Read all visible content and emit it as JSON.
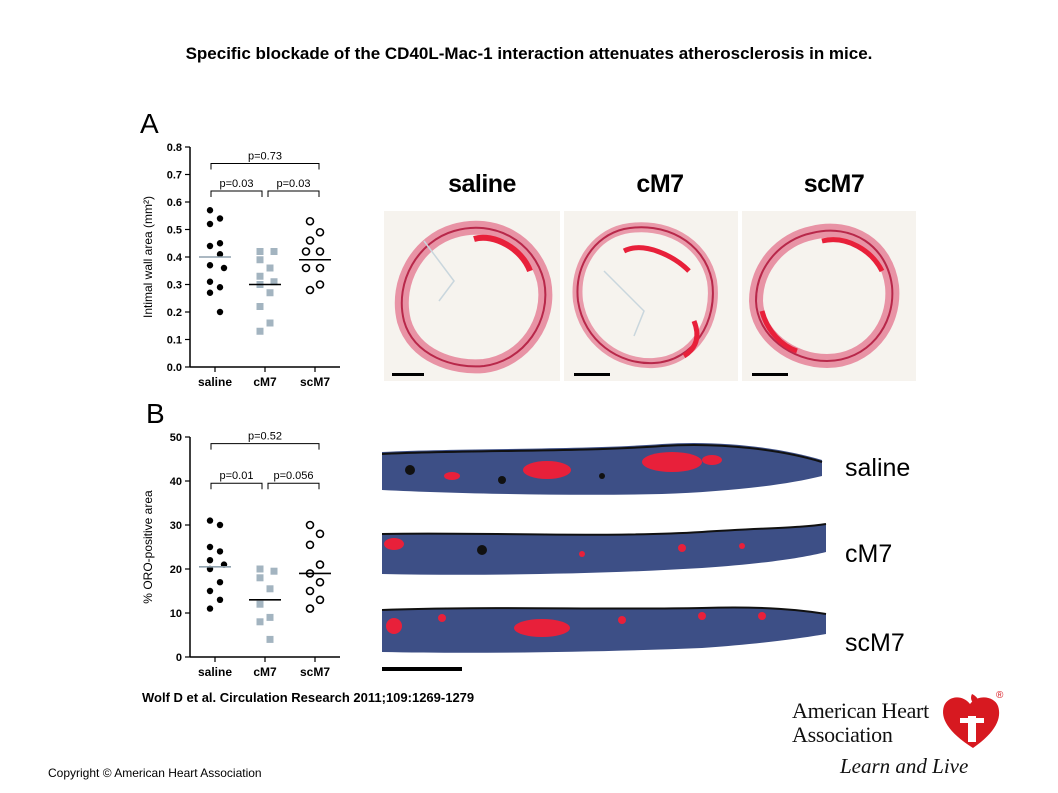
{
  "title": "Specific blockade of the CD40L-Mac-1 interaction attenuates atherosclerosis in mice.",
  "panels": {
    "a": "A",
    "b": "B"
  },
  "image_labels": {
    "columns": [
      "saline",
      "cM7",
      "scM7"
    ],
    "rows": [
      "saline",
      "cM7",
      "scM7"
    ]
  },
  "citation": "Wolf D et al. Circulation Research 2011;109:1269-1279",
  "copyright": "Copyright © American Heart Association",
  "logo": {
    "line1": "American Heart",
    "line2": "Association",
    "tagline": "Learn and Live",
    "icon": "heart-torch-icon",
    "registered": "®"
  },
  "colors": {
    "saline_marker": "#000000",
    "cM7_marker": "#a3b4c0",
    "scM7_marker": "#000000",
    "stain_red": "#e8203a",
    "vessel_blue": "#3d4f86"
  },
  "chart_data": [
    {
      "type": "scatter",
      "panel": "A",
      "title": "",
      "ylabel": "Intimal wall area (mm²)",
      "categories": [
        "saline",
        "cM7",
        "scM7"
      ],
      "ylim": [
        0,
        0.8
      ],
      "yticks": [
        "0.0",
        "0.1",
        "0.2",
        "0.3",
        "0.4",
        "0.5",
        "0.6",
        "0.7",
        "0.8"
      ],
      "series": [
        {
          "values": [
            0.57,
            0.54,
            0.52,
            0.45,
            0.44,
            0.41,
            0.37,
            0.36,
            0.31,
            0.29,
            0.27,
            0.2
          ],
          "mean": 0.4,
          "marker": "filled-circle"
        },
        {
          "values": [
            0.42,
            0.42,
            0.39,
            0.36,
            0.33,
            0.31,
            0.3,
            0.27,
            0.22,
            0.16,
            0.13
          ],
          "mean": 0.3,
          "marker": "square"
        },
        {
          "values": [
            0.53,
            0.49,
            0.46,
            0.42,
            0.42,
            0.36,
            0.36,
            0.3,
            0.28
          ],
          "mean": 0.39,
          "marker": "open-circle"
        }
      ],
      "annotations": [
        {
          "from": 0,
          "to": 2,
          "label": "p=0.73",
          "level": 0.74
        },
        {
          "from": 0,
          "to": 1,
          "label": "p=0.03",
          "level": 0.64
        },
        {
          "from": 1,
          "to": 2,
          "label": "p=0.03",
          "level": 0.64
        }
      ]
    },
    {
      "type": "scatter",
      "panel": "B",
      "title": "",
      "ylabel": "% ORO-positive area",
      "categories": [
        "saline",
        "cM7",
        "scM7"
      ],
      "ylim": [
        0,
        50
      ],
      "yticks": [
        "0",
        "10",
        "20",
        "30",
        "40",
        "50"
      ],
      "series": [
        {
          "values": [
            31,
            30,
            25,
            24,
            22,
            21,
            20,
            17,
            15,
            13,
            11
          ],
          "mean": 20.5,
          "marker": "filled-circle"
        },
        {
          "values": [
            20,
            19.5,
            18,
            15.5,
            12,
            9,
            8,
            4
          ],
          "mean": 13,
          "marker": "square"
        },
        {
          "values": [
            30,
            28,
            25.5,
            21,
            19,
            17,
            15,
            13,
            11
          ],
          "mean": 19,
          "marker": "open-circle"
        }
      ],
      "annotations": [
        {
          "from": 0,
          "to": 2,
          "label": "p=0.52",
          "level": 48.5
        },
        {
          "from": 0,
          "to": 1,
          "label": "p=0.01",
          "level": 39.5
        },
        {
          "from": 1,
          "to": 2,
          "label": "p=0.056",
          "level": 39.5
        }
      ]
    }
  ]
}
